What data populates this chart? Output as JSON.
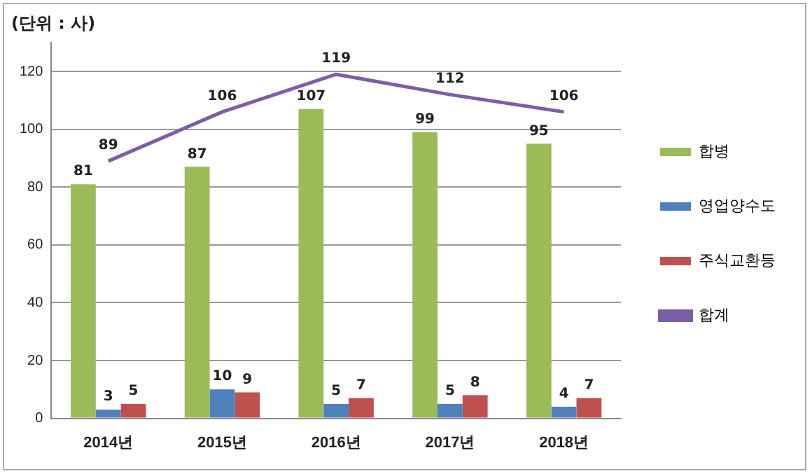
{
  "chart_data": {
    "type": "bar",
    "ylabel": "(단위 : 사)",
    "categories": [
      "2014년",
      "2015년",
      "2016년",
      "2017년",
      "2018년"
    ],
    "series": [
      {
        "name": "합병",
        "color": "#9bbb59",
        "values": [
          81,
          87,
          107,
          99,
          95
        ]
      },
      {
        "name": "영업양수도",
        "color": "#4f81bd",
        "values": [
          3,
          10,
          5,
          5,
          4
        ]
      },
      {
        "name": "주식교환등",
        "color": "#c0504d",
        "values": [
          5,
          9,
          7,
          8,
          7
        ]
      },
      {
        "name": "합계",
        "type": "line",
        "color": "#7b5ea7",
        "values": [
          89,
          106,
          119,
          112,
          106
        ]
      }
    ],
    "ylim": [
      0,
      130
    ],
    "yticks": [
      0,
      20,
      40,
      60,
      80,
      100,
      120
    ],
    "grid": "y",
    "legend": "right",
    "data_labels": true,
    "marker": "none"
  }
}
